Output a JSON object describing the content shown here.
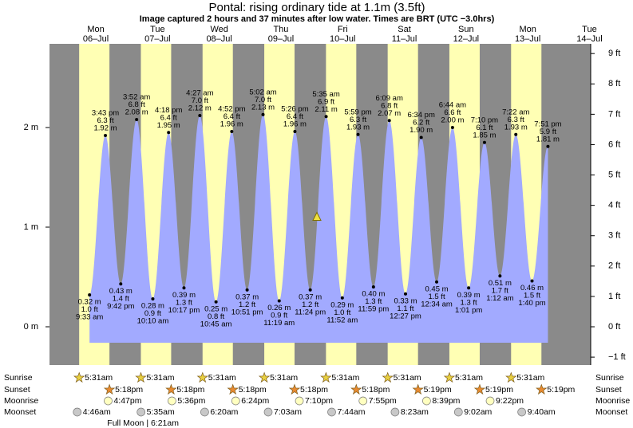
{
  "chart_data": {
    "type": "tide",
    "title": "Pontal: rising  ordinary tide at 1.1m (3.5ft)",
    "subtitle": "Image captured 2 hours and 37 minutes after low water. Times are BRT (UTC −3.0hrs)",
    "current_height_m": 1.1,
    "ylim": [
      -0.384,
      2.84
    ],
    "yticks": [
      {
        "value": 0,
        "label": "0 m"
      },
      {
        "value": 1,
        "label": "1 m"
      },
      {
        "value": 2,
        "label": "2 m"
      }
    ],
    "y2lim": [
      -1.26,
      9.32
    ],
    "y2ticks": [
      {
        "value": -1,
        "label": "−1 ft"
      },
      {
        "value": 0,
        "label": "0 ft"
      },
      {
        "value": 1,
        "label": "1 ft"
      },
      {
        "value": 2,
        "label": "2 ft"
      },
      {
        "value": 3,
        "label": "3 ft"
      },
      {
        "value": 4,
        "label": "4 ft"
      },
      {
        "value": 5,
        "label": "5 ft"
      },
      {
        "value": 6,
        "label": "6 ft"
      },
      {
        "value": 7,
        "label": "7 ft"
      },
      {
        "value": 8,
        "label": "8 ft"
      },
      {
        "value": 9,
        "label": "9 ft"
      }
    ],
    "colors": {
      "night": "#8a8a8a",
      "day": "#ffffb4",
      "water": "#a2aaff",
      "header": "#cc0000"
    },
    "rows": [
      "Sunrise",
      "Sunset",
      "Moonrise",
      "Moonset"
    ],
    "days": [
      {
        "weekday": "Mon",
        "date": "06–Jul",
        "sunrise": "5:31am",
        "sunset": "5:18pm",
        "moonrise": "4:47pm",
        "moonset": "4:46am",
        "events": [
          {
            "time": "9:33 am",
            "height_m": 0.32,
            "height_m_label": "0.32 m",
            "height_ft_label": "1.0 ft"
          },
          {
            "time": "3:43 pm",
            "height_m": 1.92,
            "height_m_label": "1.92 m",
            "height_ft_label": "6.3 ft"
          },
          {
            "time": "9:42 pm",
            "height_m": 0.43,
            "height_m_label": "0.43 m",
            "height_ft_label": "1.4 ft"
          }
        ]
      },
      {
        "weekday": "Tue",
        "date": "07–Jul",
        "sunrise": "5:31am",
        "sunset": "5:18pm",
        "moonrise": "5:36pm",
        "moonset": "5:35am",
        "full_moon": "Full Moon | 6:21am",
        "events": [
          {
            "time": "3:52 am",
            "height_m": 2.08,
            "height_m_label": "2.08 m",
            "height_ft_label": "6.8 ft"
          },
          {
            "time": "10:10 am",
            "height_m": 0.28,
            "height_m_label": "0.28 m",
            "height_ft_label": "0.9 ft"
          },
          {
            "time": "4:18 pm",
            "height_m": 1.95,
            "height_m_label": "1.95 m",
            "height_ft_label": "6.4 ft"
          },
          {
            "time": "10:17 pm",
            "height_m": 0.39,
            "height_m_label": "0.39 m",
            "height_ft_label": "1.3 ft"
          }
        ]
      },
      {
        "weekday": "Wed",
        "date": "08–Jul",
        "sunrise": "5:31am",
        "sunset": "5:18pm",
        "moonrise": "6:24pm",
        "moonset": "6:20am",
        "events": [
          {
            "time": "4:27 am",
            "height_m": 2.12,
            "height_m_label": "2.12 m",
            "height_ft_label": "7.0 ft"
          },
          {
            "time": "10:45 am",
            "height_m": 0.25,
            "height_m_label": "0.25 m",
            "height_ft_label": "0.8 ft"
          },
          {
            "time": "4:52 pm",
            "height_m": 1.96,
            "height_m_label": "1.96 m",
            "height_ft_label": "6.4 ft"
          },
          {
            "time": "10:51 pm",
            "height_m": 0.37,
            "height_m_label": "0.37 m",
            "height_ft_label": "1.2 ft"
          }
        ]
      },
      {
        "weekday": "Thu",
        "date": "09–Jul",
        "sunrise": "5:31am",
        "sunset": "5:18pm",
        "moonrise": "7:10pm",
        "moonset": "7:03am",
        "events": [
          {
            "time": "5:02 am",
            "height_m": 2.13,
            "height_m_label": "2.13 m",
            "height_ft_label": "7.0 ft"
          },
          {
            "time": "11:19 am",
            "height_m": 0.26,
            "height_m_label": "0.26 m",
            "height_ft_label": "0.9 ft"
          },
          {
            "time": "5:26 pm",
            "height_m": 1.96,
            "height_m_label": "1.96 m",
            "height_ft_label": "6.4 ft"
          },
          {
            "time": "11:24 pm",
            "height_m": 0.37,
            "height_m_label": "0.37 m",
            "height_ft_label": "1.2 ft"
          }
        ]
      },
      {
        "weekday": "Fri",
        "date": "10–Jul",
        "sunrise": "5:31am",
        "sunset": "5:18pm",
        "moonrise": "7:55pm",
        "moonset": "7:44am",
        "events": [
          {
            "time": "5:35 am",
            "height_m": 2.11,
            "height_m_label": "2.11 m",
            "height_ft_label": "6.9 ft"
          },
          {
            "time": "11:52 am",
            "height_m": 0.29,
            "height_m_label": "0.29 m",
            "height_ft_label": "1.0 ft"
          },
          {
            "time": "5:59 pm",
            "height_m": 1.93,
            "height_m_label": "1.93 m",
            "height_ft_label": "6.3 ft"
          },
          {
            "time": "11:59 pm",
            "height_m": 0.4,
            "height_m_label": "0.40 m",
            "height_ft_label": "1.3 ft"
          }
        ]
      },
      {
        "weekday": "Sat",
        "date": "11–Jul",
        "sunrise": "5:31am",
        "sunset": "5:19pm",
        "moonrise": "8:39pm",
        "moonset": "8:23am",
        "events": [
          {
            "time": "6:09 am",
            "height_m": 2.07,
            "height_m_label": "2.07 m",
            "height_ft_label": "6.8 ft"
          },
          {
            "time": "12:27 pm",
            "height_m": 0.33,
            "height_m_label": "0.33 m",
            "height_ft_label": "1.1 ft"
          },
          {
            "time": "6:34 pm",
            "height_m": 1.9,
            "height_m_label": "1.90 m",
            "height_ft_label": "6.2 ft"
          }
        ]
      },
      {
        "weekday": "Sun",
        "date": "12–Jul",
        "sunrise": "5:31am",
        "sunset": "5:19pm",
        "moonrise": "9:22pm",
        "moonset": "9:02am",
        "events": [
          {
            "time": "12:34 am",
            "height_m": 0.45,
            "height_m_label": "0.45 m",
            "height_ft_label": "1.5 ft"
          },
          {
            "time": "6:44 am",
            "height_m": 2.0,
            "height_m_label": "2.00 m",
            "height_ft_label": "6.6 ft"
          },
          {
            "time": "1:01 pm",
            "height_m": 0.39,
            "height_m_label": "0.39 m",
            "height_ft_label": "1.3 ft"
          },
          {
            "time": "7:10 pm",
            "height_m": 1.85,
            "height_m_label": "1.85 m",
            "height_ft_label": "6.1 ft"
          }
        ]
      },
      {
        "weekday": "Mon",
        "date": "13–Jul",
        "sunrise": "5:31am",
        "sunset": "5:19pm",
        "moonset": "9:40am",
        "events": [
          {
            "time": "1:12 am",
            "height_m": 0.51,
            "height_m_label": "0.51 m",
            "height_ft_label": "1.7 ft"
          },
          {
            "time": "7:22 am",
            "height_m": 1.93,
            "height_m_label": "1.93 m",
            "height_ft_label": "6.3 ft"
          },
          {
            "time": "1:40 pm",
            "height_m": 0.46,
            "height_m_label": "0.46 m",
            "height_ft_label": "1.5 ft"
          },
          {
            "time": "7:51 pm",
            "height_m": 1.81,
            "height_m_label": "1.81 m",
            "height_ft_label": "5.9 ft"
          }
        ]
      },
      {
        "weekday": "Tue",
        "date": "14–Jul",
        "events": []
      }
    ]
  }
}
